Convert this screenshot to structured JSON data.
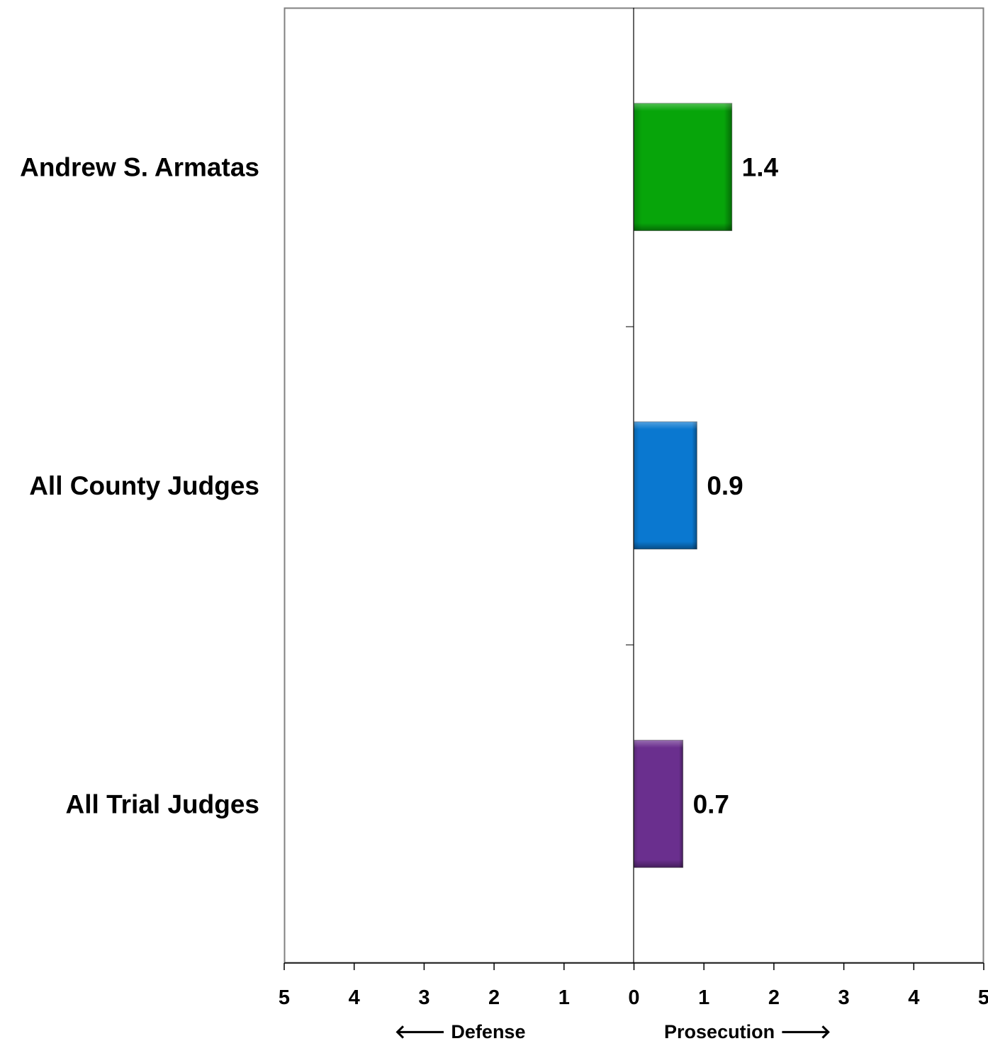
{
  "chart_data": {
    "type": "bar",
    "orientation": "horizontal",
    "categories": [
      "Andrew S. Armatas",
      "All County Judges",
      "All Trial Judges"
    ],
    "values": [
      1.4,
      0.9,
      0.7
    ],
    "value_labels": [
      "1.4",
      "0.9",
      "0.7"
    ],
    "colors": [
      "#07A50A",
      "#0A78D0",
      "#6A2F8E"
    ],
    "xlim": [
      -5,
      5
    ],
    "x_ticks": [
      -5,
      -4,
      -3,
      -2,
      -1,
      0,
      1,
      2,
      3,
      4,
      5
    ],
    "x_tick_labels": [
      "5",
      "4",
      "3",
      "2",
      "1",
      "0",
      "1",
      "2",
      "3",
      "4",
      "5"
    ],
    "left_direction_label": "🡐 Defense",
    "right_direction_label": "Prosecution 🡒",
    "title": "",
    "grid": false,
    "legend": "none"
  }
}
